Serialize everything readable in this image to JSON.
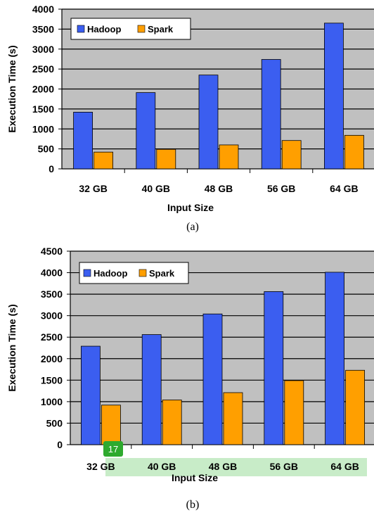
{
  "colors": {
    "hadoop": "#3b5ef0",
    "spark": "#ff9f00",
    "plot_background": "#c0c0c0",
    "highlight": "#c8ecc8",
    "badge": "#2eaa2e"
  },
  "overlay": {
    "badge_text": "17"
  },
  "chart_data": [
    {
      "type": "bar",
      "caption": "(a)",
      "xlabel": "Input Size",
      "ylabel": "Execution Time (s)",
      "ylim": [
        0,
        4000
      ],
      "yticks": [
        0,
        500,
        1000,
        1500,
        2000,
        2500,
        3000,
        3500,
        4000
      ],
      "grid": true,
      "legend_position": "top-left",
      "categories": [
        "32 GB",
        "40 GB",
        "48 GB",
        "56 GB",
        "64 GB"
      ],
      "series": [
        {
          "name": "Hadoop",
          "values": [
            1420,
            1910,
            2350,
            2740,
            3650
          ]
        },
        {
          "name": "Spark",
          "values": [
            420,
            490,
            600,
            710,
            840
          ]
        }
      ]
    },
    {
      "type": "bar",
      "caption": "(b)",
      "xlabel": "Input Size",
      "ylabel": "Execution Time (s)",
      "ylim": [
        0,
        4500
      ],
      "yticks": [
        0,
        500,
        1000,
        1500,
        2000,
        2500,
        3000,
        3500,
        4000,
        4500
      ],
      "grid": true,
      "legend_position": "top-left",
      "categories": [
        "32 GB",
        "40 GB",
        "48 GB",
        "56 GB",
        "64 GB"
      ],
      "series": [
        {
          "name": "Hadoop",
          "values": [
            2290,
            2560,
            3040,
            3560,
            4010
          ]
        },
        {
          "name": "Spark",
          "values": [
            920,
            1040,
            1210,
            1490,
            1730
          ]
        }
      ]
    }
  ]
}
